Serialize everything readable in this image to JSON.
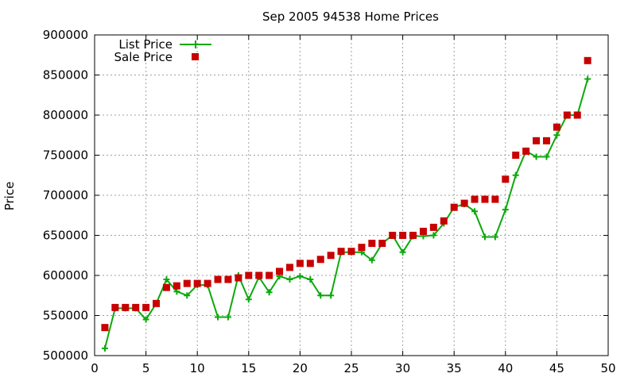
{
  "colors": {
    "list": "#0aaa0a",
    "sale": "#c80000",
    "grid": "#a0a0a0"
  },
  "chart_data": {
    "type": "line",
    "title": "Sep 2005 94538 Home Prices",
    "xlabel": "",
    "ylabel": "Price",
    "xlim": [
      0,
      50
    ],
    "ylim": [
      500000,
      900000
    ],
    "xticks": [
      0,
      5,
      10,
      15,
      20,
      25,
      30,
      35,
      40,
      45,
      50
    ],
    "yticks": [
      500000,
      550000,
      600000,
      650000,
      700000,
      750000,
      800000,
      850000,
      900000
    ],
    "grid": true,
    "legend": "top-left",
    "x": [
      1,
      2,
      3,
      4,
      5,
      6,
      7,
      8,
      9,
      10,
      11,
      12,
      13,
      14,
      15,
      16,
      17,
      18,
      19,
      20,
      21,
      22,
      23,
      24,
      25,
      26,
      27,
      28,
      29,
      30,
      31,
      32,
      33,
      34,
      35,
      36,
      37,
      38,
      39,
      40,
      41,
      42,
      43,
      44,
      45,
      46,
      47,
      48
    ],
    "series": [
      {
        "name": "List Price",
        "style": "line-plus",
        "values": [
          509000,
          559000,
          559000,
          559000,
          545000,
          565000,
          595000,
          580000,
          575000,
          588000,
          588000,
          548000,
          548000,
          600000,
          570000,
          598000,
          579000,
          599000,
          595000,
          599000,
          595000,
          575000,
          575000,
          629000,
          629000,
          629000,
          619000,
          640000,
          650000,
          629000,
          649000,
          649000,
          650000,
          665000,
          685000,
          689000,
          680000,
          648000,
          648000,
          682000,
          725000,
          755000,
          748000,
          748000,
          775000,
          800000,
          800000,
          845000
        ]
      },
      {
        "name": "Sale Price",
        "style": "square",
        "values": [
          535000,
          560000,
          560000,
          560000,
          560000,
          565000,
          585000,
          587000,
          590000,
          590000,
          590000,
          595000,
          595000,
          597000,
          600000,
          600000,
          600000,
          605000,
          610000,
          615000,
          615000,
          620000,
          625000,
          630000,
          630000,
          635000,
          640000,
          640000,
          650000,
          650000,
          650000,
          655000,
          660000,
          668000,
          685000,
          690000,
          695000,
          695000,
          695000,
          720000,
          750000,
          755000,
          768000,
          768000,
          785000,
          800000,
          800000,
          868000
        ]
      }
    ]
  }
}
